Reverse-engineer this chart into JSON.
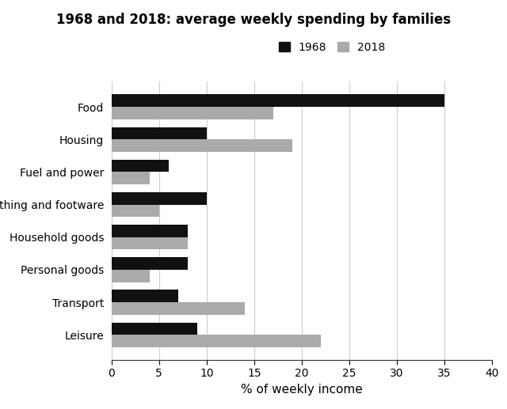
{
  "title": "1968 and 2018: average weekly spending by families",
  "categories": [
    "Food",
    "Housing",
    "Fuel and power",
    "Clothing and footware",
    "Household goods",
    "Personal goods",
    "Transport",
    "Leisure"
  ],
  "values_1968": [
    35,
    10,
    6,
    10,
    8,
    8,
    7,
    9
  ],
  "values_2018": [
    17,
    19,
    4,
    5,
    8,
    4,
    14,
    22
  ],
  "color_1968": "#111111",
  "color_2018": "#aaaaaa",
  "xlabel": "% of weekly income",
  "xlim": [
    0,
    40
  ],
  "xticks": [
    0,
    5,
    10,
    15,
    20,
    25,
    30,
    35,
    40
  ],
  "legend_labels": [
    "1968",
    "2018"
  ],
  "bar_height": 0.38,
  "background_color": "#ffffff",
  "grid_color": "#cccccc"
}
